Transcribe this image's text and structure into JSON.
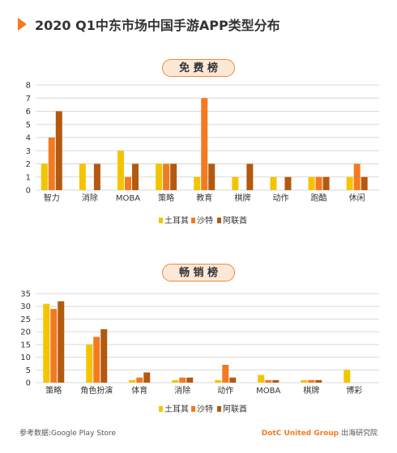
{
  "title": "2020 Q1中东市场中国手游APP类型分布",
  "footer": {
    "source": "参考数据:Google Play Store",
    "brand": "DotC United Group",
    "brand_suffix": "出海研究院"
  },
  "colors": {
    "turkey": "#f5c400",
    "saudi": "#f47a20",
    "uae": "#b35a10",
    "accent": "#f47a20",
    "pill_bg": "#fbe8d7"
  },
  "chart_data": [
    {
      "type": "bar",
      "title": "免 费 榜",
      "categories": [
        "智力",
        "消除",
        "MOBA",
        "策略",
        "教育",
        "棋牌",
        "动作",
        "跑酷",
        "休闲"
      ],
      "series": [
        {
          "name": "土耳其",
          "values": [
            2,
            2,
            3,
            2,
            1,
            1,
            1,
            1,
            1
          ]
        },
        {
          "name": "沙特",
          "values": [
            4,
            0,
            1,
            2,
            7,
            0,
            0,
            1,
            2
          ]
        },
        {
          "name": "阿联酋",
          "values": [
            6,
            2,
            2,
            2,
            2,
            2,
            1,
            1,
            1
          ]
        }
      ],
      "yticks": [
        0,
        1,
        2,
        3,
        4,
        5,
        6,
        7,
        8
      ],
      "ylim": [
        0,
        8
      ],
      "grid": true,
      "legend": "bottom"
    },
    {
      "type": "bar",
      "title": "畅 销 榜",
      "categories": [
        "策略",
        "角色扮演",
        "体育",
        "消除",
        "动作",
        "MOBA",
        "棋牌",
        "博彩"
      ],
      "series": [
        {
          "name": "土耳其",
          "values": [
            31,
            15,
            1,
            1,
            1,
            3,
            1,
            5
          ]
        },
        {
          "name": "沙特",
          "values": [
            29,
            18,
            2,
            2,
            7,
            1,
            1,
            0
          ]
        },
        {
          "name": "阿联酋",
          "values": [
            32,
            21,
            4,
            2,
            2,
            1,
            1,
            0
          ]
        }
      ],
      "yticks": [
        0,
        5,
        10,
        15,
        20,
        25,
        30,
        35
      ],
      "ylim": [
        0,
        35
      ],
      "grid": true,
      "legend": "bottom"
    }
  ]
}
